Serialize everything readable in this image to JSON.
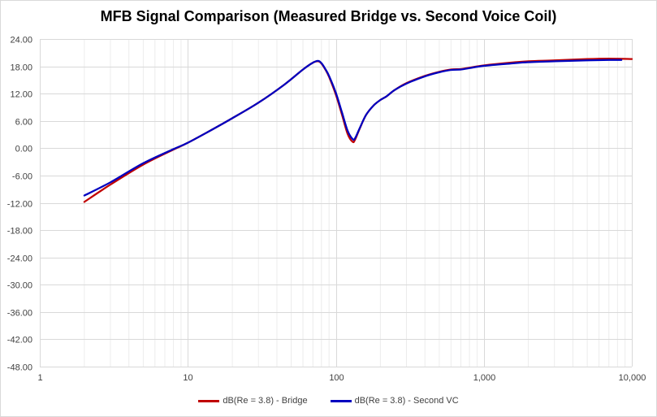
{
  "chart_data": {
    "type": "line",
    "title": "MFB Signal Comparison (Measured Bridge vs. Second Voice Coil)",
    "xlabel": "",
    "ylabel": "",
    "x_scale": "log",
    "xlim": [
      1,
      10000
    ],
    "ylim": [
      -48,
      24
    ],
    "x_ticks": [
      1,
      10,
      100,
      1000,
      10000
    ],
    "x_tick_labels": [
      "1",
      "10",
      "100",
      "1,000",
      "10,000"
    ],
    "y_ticks": [
      -48,
      -42,
      -36,
      -30,
      -24,
      -18,
      -12,
      -6,
      0,
      6,
      12,
      18,
      24
    ],
    "y_tick_labels": [
      "-48.00",
      "-42.00",
      "-36.00",
      "-30.00",
      "-24.00",
      "-18.00",
      "-12.00",
      "-6.00",
      "0.00",
      "6.00",
      "12.00",
      "18.00",
      "24.00"
    ],
    "grid": true,
    "minor_grid_x": true,
    "legend_position": "bottom",
    "series": [
      {
        "name": "dB(Re = 3.8) - Bridge",
        "color": "#c00000",
        "x": [
          2,
          3,
          5,
          8,
          10,
          15,
          20,
          30,
          45,
          60,
          70,
          76,
          80,
          85,
          90,
          100,
          110,
          120,
          130,
          135,
          145,
          160,
          180,
          200,
          220,
          250,
          300,
          400,
          500,
          600,
          700,
          800,
          1000,
          1500,
          2000,
          3000,
          5000,
          7000,
          10000
        ],
        "y": [
          -11.8,
          -8.0,
          -3.6,
          -0.3,
          1.2,
          4.3,
          6.6,
          10.0,
          14.0,
          17.3,
          18.8,
          19.1,
          18.6,
          17.3,
          15.7,
          11.8,
          7.4,
          3.2,
          1.4,
          1.9,
          4.3,
          7.3,
          9.4,
          10.6,
          11.4,
          12.8,
          14.3,
          15.9,
          16.8,
          17.3,
          17.4,
          17.7,
          18.2,
          18.8,
          19.1,
          19.3,
          19.6,
          19.7,
          19.6
        ]
      },
      {
        "name": "dB(Re = 3.8) - Second VC",
        "color": "#0000c0",
        "x": [
          2,
          3,
          5,
          8,
          10,
          15,
          20,
          30,
          45,
          60,
          70,
          76,
          80,
          85,
          90,
          100,
          110,
          120,
          130,
          135,
          145,
          160,
          180,
          200,
          220,
          250,
          300,
          400,
          500,
          600,
          700,
          800,
          1000,
          1500,
          2000,
          3000,
          5000,
          7000,
          8500
        ],
        "y": [
          -10.4,
          -7.5,
          -3.3,
          -0.2,
          1.2,
          4.3,
          6.6,
          10.0,
          14.0,
          17.3,
          18.8,
          19.2,
          18.7,
          17.4,
          15.9,
          12.2,
          7.9,
          3.9,
          2.0,
          2.2,
          4.4,
          7.3,
          9.4,
          10.6,
          11.4,
          12.8,
          14.2,
          15.8,
          16.7,
          17.2,
          17.3,
          17.6,
          18.1,
          18.6,
          18.9,
          19.1,
          19.3,
          19.4,
          19.4
        ]
      }
    ]
  }
}
